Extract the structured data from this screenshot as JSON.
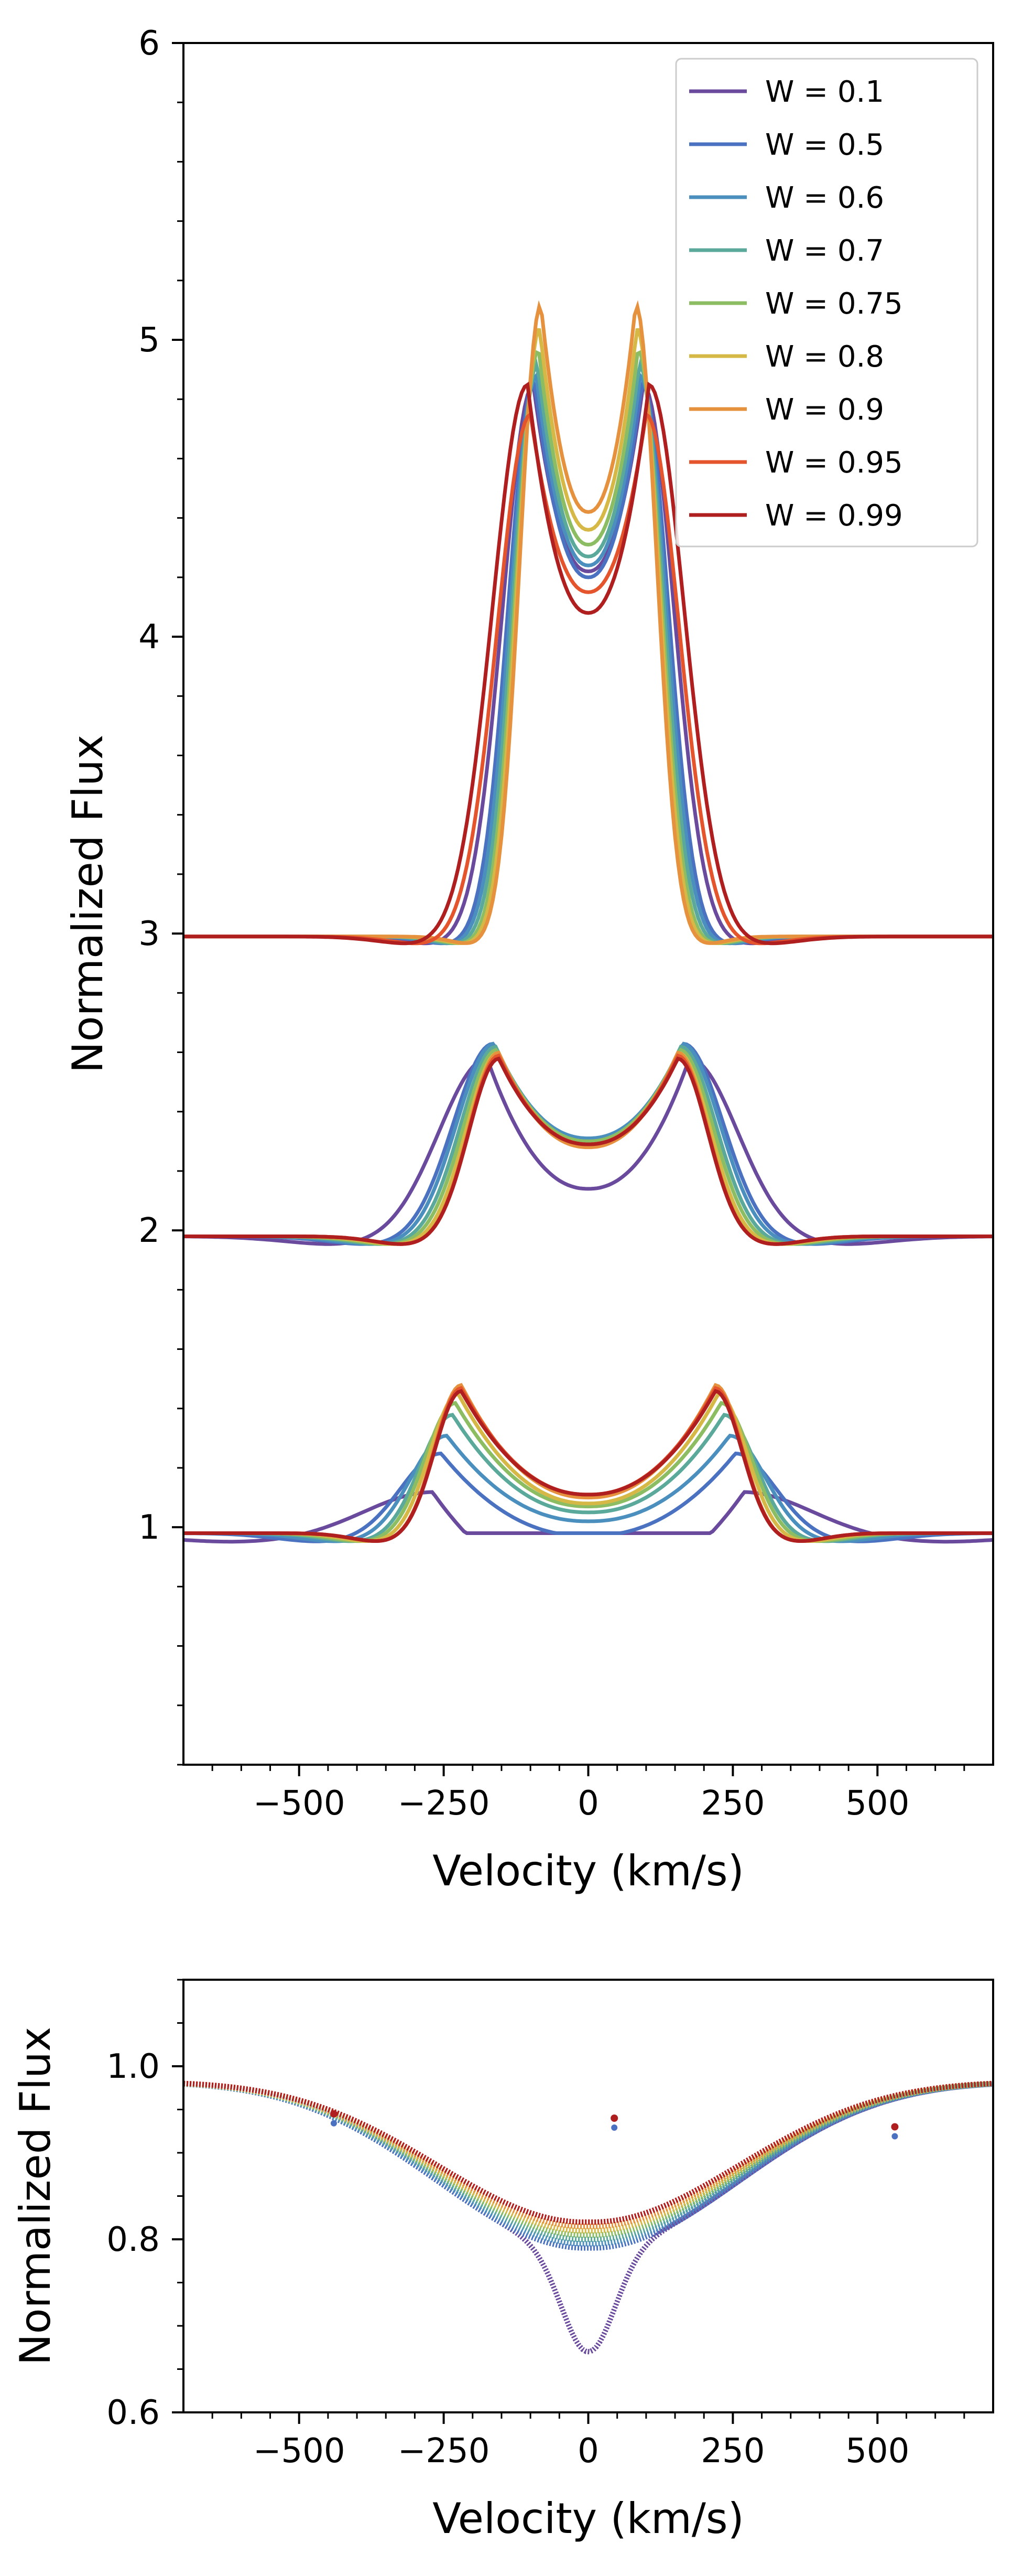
{
  "colors": [
    "#6a4a9c",
    "#4a72c0",
    "#4a8fbd",
    "#5aa99a",
    "#8cbd62",
    "#d6b847",
    "#e6913e",
    "#e4552e",
    "#b01f1f"
  ],
  "chart_data": [
    {
      "type": "line",
      "name": "top-panel",
      "xlabel": "Velocity (km/s)",
      "ylabel": "Normalized Flux",
      "xlim": [
        -700,
        700
      ],
      "ylim": [
        0.2,
        6
      ],
      "xticks": [
        -500,
        -250,
        0,
        250,
        500
      ],
      "xtick_labels": [
        "−500",
        "−250",
        "0",
        "250",
        "500"
      ],
      "yticks": [
        1,
        2,
        3,
        4,
        5,
        6
      ],
      "ytick_labels": [
        "1",
        "2",
        "3",
        "4",
        "5",
        "6"
      ],
      "legend_position": "top-right",
      "legend": [
        "W = 0.1",
        "W = 0.5",
        "W = 0.6",
        "W = 0.7",
        "W = 0.75",
        "W = 0.8",
        "W = 0.9",
        "W = 0.95",
        "W = 0.99"
      ],
      "series": [
        {
          "name": "W = 0.1",
          "groups": {
            "1": {
              "base": 0.98,
              "peak": 1.12,
              "vpeak": 270,
              "center": 0.78,
              "width": 150
            },
            "2": {
              "base": 1.98,
              "peak": 2.58,
              "vpeak": 175,
              "center": 2.14,
              "width": 110
            },
            "3": {
              "base": 2.99,
              "peak": 4.85,
              "vpeak": 95,
              "center": 4.22,
              "width": 70
            }
          }
        },
        {
          "name": "W = 0.5",
          "groups": {
            "1": {
              "base": 0.98,
              "peak": 1.25,
              "vpeak": 255,
              "center": 0.97,
              "width": 90
            },
            "2": {
              "base": 1.98,
              "peak": 2.63,
              "vpeak": 165,
              "center": 2.31,
              "width": 90
            },
            "3": {
              "base": 2.99,
              "peak": 4.86,
              "vpeak": 93,
              "center": 4.2,
              "width": 60
            }
          }
        },
        {
          "name": "W = 0.6",
          "groups": {
            "1": {
              "base": 0.98,
              "peak": 1.31,
              "vpeak": 245,
              "center": 1.02,
              "width": 80
            },
            "2": {
              "base": 1.98,
              "peak": 2.63,
              "vpeak": 163,
              "center": 2.31,
              "width": 85
            },
            "3": {
              "base": 2.99,
              "peak": 4.88,
              "vpeak": 90,
              "center": 4.24,
              "width": 58
            }
          }
        },
        {
          "name": "W = 0.7",
          "groups": {
            "1": {
              "base": 0.98,
              "peak": 1.38,
              "vpeak": 235,
              "center": 1.05,
              "width": 72
            },
            "2": {
              "base": 1.98,
              "peak": 2.62,
              "vpeak": 160,
              "center": 2.3,
              "width": 80
            },
            "3": {
              "base": 2.99,
              "peak": 4.92,
              "vpeak": 88,
              "center": 4.27,
              "width": 55
            }
          }
        },
        {
          "name": "W = 0.75",
          "groups": {
            "1": {
              "base": 0.98,
              "peak": 1.42,
              "vpeak": 230,
              "center": 1.07,
              "width": 68
            },
            "2": {
              "base": 1.98,
              "peak": 2.61,
              "vpeak": 158,
              "center": 2.3,
              "width": 76
            },
            "3": {
              "base": 2.99,
              "peak": 4.97,
              "vpeak": 86,
              "center": 4.31,
              "width": 52
            }
          }
        },
        {
          "name": "W = 0.8",
          "groups": {
            "1": {
              "base": 0.98,
              "peak": 1.45,
              "vpeak": 225,
              "center": 1.08,
              "width": 64
            },
            "2": {
              "base": 1.98,
              "peak": 2.6,
              "vpeak": 156,
              "center": 2.29,
              "width": 72
            },
            "3": {
              "base": 2.99,
              "peak": 5.04,
              "vpeak": 84,
              "center": 4.36,
              "width": 50
            }
          }
        },
        {
          "name": "W = 0.9",
          "groups": {
            "1": {
              "base": 0.98,
              "peak": 1.48,
              "vpeak": 220,
              "center": 1.1,
              "width": 60
            },
            "2": {
              "base": 1.98,
              "peak": 2.6,
              "vpeak": 155,
              "center": 2.28,
              "width": 68
            },
            "3": {
              "base": 2.99,
              "peak": 5.12,
              "vpeak": 82,
              "center": 4.42,
              "width": 48
            }
          }
        },
        {
          "name": "W = 0.95",
          "groups": {
            "1": {
              "base": 0.98,
              "peak": 1.47,
              "vpeak": 220,
              "center": 1.11,
              "width": 60
            },
            "2": {
              "base": 1.98,
              "peak": 2.59,
              "vpeak": 155,
              "center": 2.29,
              "width": 68
            },
            "3": {
              "base": 2.99,
              "peak": 4.75,
              "vpeak": 100,
              "center": 4.15,
              "width": 75
            }
          }
        },
        {
          "name": "W = 0.99",
          "groups": {
            "1": {
              "base": 0.98,
              "peak": 1.46,
              "vpeak": 220,
              "center": 1.11,
              "width": 60
            },
            "2": {
              "base": 1.98,
              "peak": 2.58,
              "vpeak": 155,
              "center": 2.29,
              "width": 68
            },
            "3": {
              "base": 2.99,
              "peak": 4.85,
              "vpeak": 105,
              "center": 4.08,
              "width": 80
            }
          }
        }
      ]
    },
    {
      "type": "scatter",
      "name": "bottom-panel",
      "xlabel": "Velocity (km/s)",
      "ylabel": "Normalized Flux",
      "xlim": [
        -700,
        700
      ],
      "ylim": [
        0.6,
        1.1
      ],
      "xticks": [
        -500,
        -250,
        0,
        250,
        500
      ],
      "xtick_labels": [
        "−500",
        "−250",
        "0",
        "250",
        "500"
      ],
      "yticks": [
        0.6,
        0.8,
        1.0
      ],
      "ytick_labels": [
        "0.6",
        "0.8",
        "1.0"
      ],
      "series": [
        {
          "name": "W = 0.1",
          "broad_center": 0.79,
          "narrow_center": 0.67
        },
        {
          "name": "W = 0.5",
          "broad_center": 0.79,
          "narrow_center": null
        },
        {
          "name": "W = 0.6",
          "broad_center": 0.795,
          "narrow_center": null
        },
        {
          "name": "W = 0.7",
          "broad_center": 0.8,
          "narrow_center": null
        },
        {
          "name": "W = 0.75",
          "broad_center": 0.805,
          "narrow_center": null
        },
        {
          "name": "W = 0.8",
          "broad_center": 0.81,
          "narrow_center": null
        },
        {
          "name": "W = 0.9",
          "broad_center": 0.815,
          "narrow_center": null
        },
        {
          "name": "W = 0.95",
          "broad_center": 0.82,
          "narrow_center": null
        },
        {
          "name": "W = 0.99",
          "broad_center": 0.82,
          "narrow_center": null
        }
      ],
      "outliers": [
        {
          "x": -440,
          "y": 0.945
        },
        {
          "x": 45,
          "y": 0.94
        },
        {
          "x": 530,
          "y": 0.93
        }
      ]
    }
  ]
}
